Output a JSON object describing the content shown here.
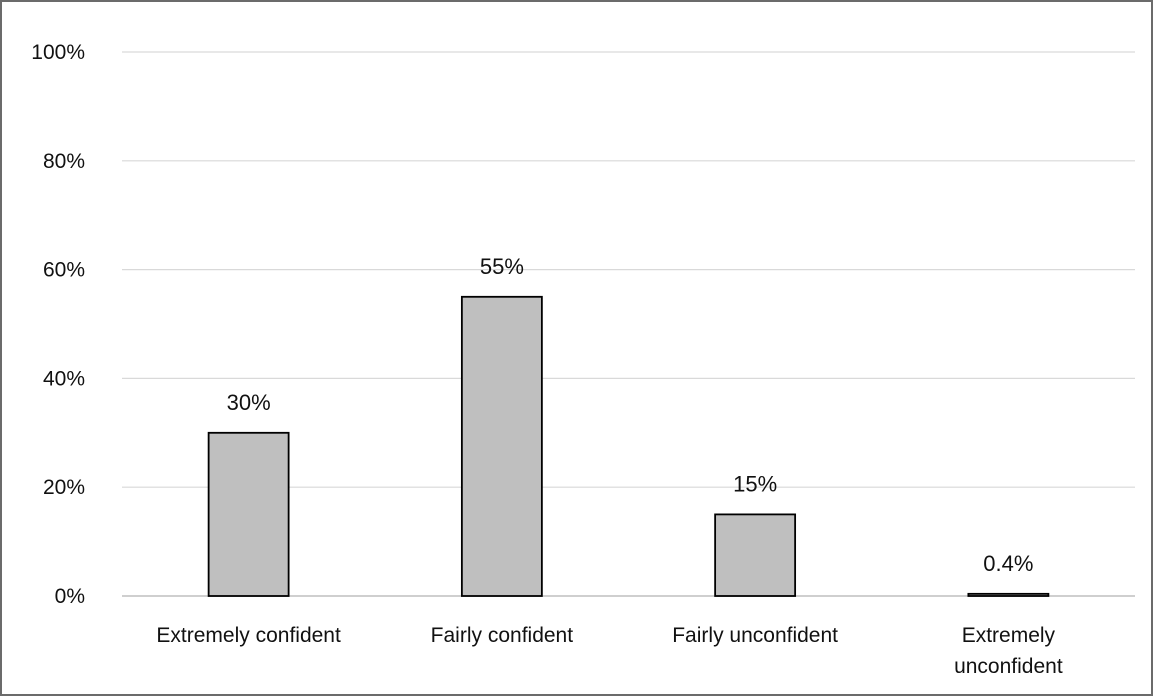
{
  "chart_data": {
    "type": "bar",
    "categories": [
      [
        "Extremely confident"
      ],
      [
        "Fairly confident"
      ],
      [
        "Fairly unconfident"
      ],
      [
        "Extremely",
        "unconfident"
      ]
    ],
    "values": [
      30,
      55,
      15,
      0.4
    ],
    "data_labels": [
      "30%",
      "55%",
      "15%",
      "0.4%"
    ],
    "ylim": [
      0,
      100
    ],
    "yticks": [
      0,
      20,
      40,
      60,
      80,
      100
    ],
    "ytick_labels": [
      "0%",
      "20%",
      "40%",
      "60%",
      "80%",
      "100%"
    ],
    "grid": true,
    "legend": "none",
    "bar_color": "#bfbfbf",
    "bar_edge_color": "#000000"
  }
}
